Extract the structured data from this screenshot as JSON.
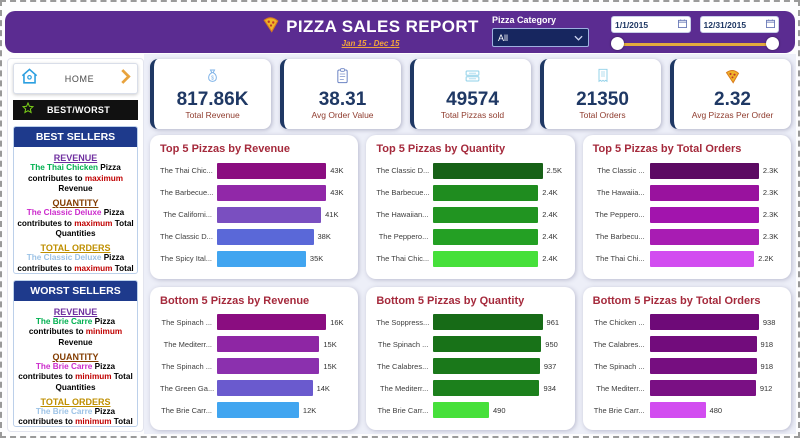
{
  "colors": {
    "header_purple": "#5b2c91",
    "navy": "#1f3864",
    "title_red": "#a52a3c",
    "gold": "#e3aa3c",
    "kpi_label": "#8f3b2d"
  },
  "header": {
    "title": "PIZZA SALES REPORT",
    "subtitle": "Jan 15 - Dec 15",
    "category_label": "Pizza Category",
    "category_value": "All",
    "date_start": "1/1/2015",
    "date_end": "12/31/2015"
  },
  "sidebar": {
    "home_label": "HOME",
    "best_worst_label": "BEST/WORST",
    "best_sellers": {
      "title": "BEST SELLERS",
      "sections": [
        {
          "heading": "REVENUE",
          "color": "#7030a0",
          "parts": [
            {
              "text": "The Thai Chicken ",
              "color": "#00b050"
            },
            {
              "text": "Pizza contributes to ",
              "color": "#000000"
            },
            {
              "text": "maximum",
              "color": "#c00000"
            },
            {
              "text": " Revenue",
              "color": "#000000"
            }
          ]
        },
        {
          "heading": "QUANTITY",
          "color": "#833c00",
          "parts": [
            {
              "text": "The Classic Deluxe ",
              "color": "#cc2bcc"
            },
            {
              "text": "Pizza contributes to ",
              "color": "#000000"
            },
            {
              "text": "maximum",
              "color": "#c00000"
            },
            {
              "text": " Total Quantities",
              "color": "#000000"
            }
          ]
        },
        {
          "heading": "TOTAL ORDERS",
          "color": "#bf8f00",
          "parts": [
            {
              "text": "The Classic Deluxe ",
              "color": "#9dc3e6"
            },
            {
              "text": "Pizza contributes to ",
              "color": "#000000"
            },
            {
              "text": "maximum",
              "color": "#c00000"
            },
            {
              "text": " Total Orders",
              "color": "#000000"
            }
          ]
        }
      ]
    },
    "worst_sellers": {
      "title": "WORST SELLERS",
      "sections": [
        {
          "heading": "REVENUE",
          "color": "#7030a0",
          "parts": [
            {
              "text": "The Brie Carre ",
              "color": "#00b050"
            },
            {
              "text": "Pizza contributes to ",
              "color": "#000000"
            },
            {
              "text": "minimum",
              "color": "#c00000"
            },
            {
              "text": " Revenue",
              "color": "#000000"
            }
          ]
        },
        {
          "heading": "QUANTITY",
          "color": "#833c00",
          "parts": [
            {
              "text": "The Brie Carre ",
              "color": "#cc2bcc"
            },
            {
              "text": "Pizza contributes to ",
              "color": "#000000"
            },
            {
              "text": "minimum",
              "color": "#c00000"
            },
            {
              "text": " Total Quantities",
              "color": "#000000"
            }
          ]
        },
        {
          "heading": "TOTAL ORDERS",
          "color": "#bf8f00",
          "parts": [
            {
              "text": "The Brie Carre ",
              "color": "#9dc3e6"
            },
            {
              "text": "Pizza contributes to ",
              "color": "#000000"
            },
            {
              "text": "minimum",
              "color": "#c00000"
            },
            {
              "text": " Total Orders",
              "color": "#000000"
            }
          ]
        }
      ]
    }
  },
  "kpis": [
    {
      "icon": "money-icon",
      "value": "817.86K",
      "label": "Total Revenue"
    },
    {
      "icon": "clipboard-icon",
      "value": "38.31",
      "label": "Avg Order Value"
    },
    {
      "icon": "pizza-box-icon",
      "value": "49574",
      "label": "Total Pizzas sold"
    },
    {
      "icon": "receipt-icon",
      "value": "21350",
      "label": "Total Orders"
    },
    {
      "icon": "pizza-slice-icon",
      "value": "2.32",
      "label": "Avg Pizzas Per Order"
    }
  ],
  "chart_data": [
    {
      "type": "bar",
      "orientation": "horizontal",
      "title": "Top 5 Pizzas by Revenue",
      "categories": [
        "The Thai Chic...",
        "The Barbecue...",
        "The Californi...",
        "The Classic D...",
        "The Spicy Ital..."
      ],
      "values": [
        43000,
        43000,
        41000,
        38000,
        35000
      ],
      "value_labels": [
        "43K",
        "43K",
        "41K",
        "38K",
        "35K"
      ],
      "colors": [
        "#8a0d80",
        "#9128a8",
        "#7a4fc0",
        "#5a68d8",
        "#41a5f0"
      ],
      "xlabel": "",
      "ylabel": ""
    },
    {
      "type": "bar",
      "orientation": "horizontal",
      "title": "Top 5 Pizzas by Quantity",
      "categories": [
        "The Classic D...",
        "The Barbecue...",
        "The Hawaiian...",
        "The Peppero...",
        "The Thai Chic..."
      ],
      "values": [
        2500,
        2400,
        2400,
        2400,
        2400
      ],
      "value_labels": [
        "2.5K",
        "2.4K",
        "2.4K",
        "2.4K",
        "2.4K"
      ],
      "colors": [
        "#176117",
        "#1f8c1f",
        "#219421",
        "#24a024",
        "#46e03a"
      ],
      "xlabel": "",
      "ylabel": ""
    },
    {
      "type": "bar",
      "orientation": "horizontal",
      "title": "Top 5 Pizzas by Total Orders",
      "categories": [
        "The Classic ...",
        "The Hawaiia...",
        "The Peppero...",
        "The Barbecu...",
        "The Thai Chi..."
      ],
      "values": [
        2300,
        2300,
        2300,
        2300,
        2200
      ],
      "value_labels": [
        "2.3K",
        "2.3K",
        "2.3K",
        "2.3K",
        "2.2K"
      ],
      "colors": [
        "#5c0a63",
        "#99129e",
        "#a214ad",
        "#a81cb3",
        "#d24df0"
      ],
      "xlabel": "",
      "ylabel": ""
    },
    {
      "type": "bar",
      "orientation": "horizontal",
      "title": "Bottom 5 Pizzas by Revenue",
      "categories": [
        "The Spinach ...",
        "The Mediterr...",
        "The Spinach ...",
        "The Green Ga...",
        "The Brie Carr..."
      ],
      "values": [
        16000,
        15000,
        15000,
        14000,
        12000
      ],
      "value_labels": [
        "16K",
        "15K",
        "15K",
        "14K",
        "12K"
      ],
      "colors": [
        "#8a0d80",
        "#8e26a4",
        "#8b30ae",
        "#6a5ace",
        "#41a5f0"
      ],
      "xlabel": "",
      "ylabel": ""
    },
    {
      "type": "bar",
      "orientation": "horizontal",
      "title": "Bottom 5 Pizzas by Quantity",
      "categories": [
        "The Soppress...",
        "The Spinach ...",
        "The Calabres...",
        "The Mediterr...",
        "The Brie Carr..."
      ],
      "values": [
        961,
        950,
        937,
        934,
        490
      ],
      "value_labels": [
        "961",
        "950",
        "937",
        "934",
        "490"
      ],
      "colors": [
        "#176b17",
        "#187218",
        "#1a781a",
        "#1c801c",
        "#46e03a"
      ],
      "xlabel": "",
      "ylabel": ""
    },
    {
      "type": "bar",
      "orientation": "horizontal",
      "title": "Bottom 5 Pizzas by Total Orders",
      "categories": [
        "The Chicken ...",
        "The Calabres...",
        "The Spinach ...",
        "The Mediterr...",
        "The Brie Carr..."
      ],
      "values": [
        938,
        918,
        918,
        912,
        480
      ],
      "value_labels": [
        "938",
        "918",
        "918",
        "912",
        "480"
      ],
      "colors": [
        "#6e0a78",
        "#720c7c",
        "#760e80",
        "#7a1084",
        "#d24df0"
      ],
      "xlabel": "",
      "ylabel": ""
    }
  ]
}
